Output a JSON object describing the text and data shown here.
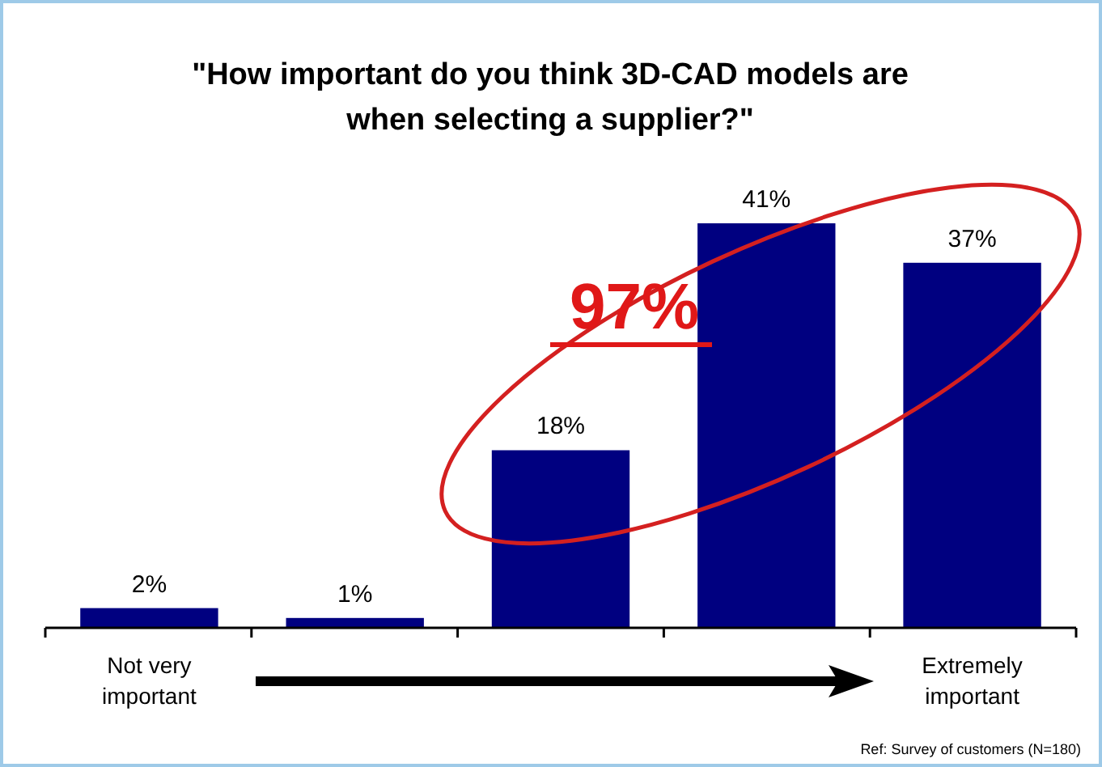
{
  "chart_data": {
    "type": "bar",
    "title": "\"How important do you think 3D-CAD models are when selecting a supplier?\"",
    "categories": [
      "Not very important",
      null,
      null,
      null,
      "Extremely important"
    ],
    "values": [
      2,
      1,
      18,
      41,
      37
    ],
    "color": "#000080",
    "value_labels": [
      "2%",
      "1%",
      "18%",
      "41%",
      "37%"
    ],
    "annotations": [
      "97%",
      "Ref: Survey of customers (N=180)"
    ]
  }
}
